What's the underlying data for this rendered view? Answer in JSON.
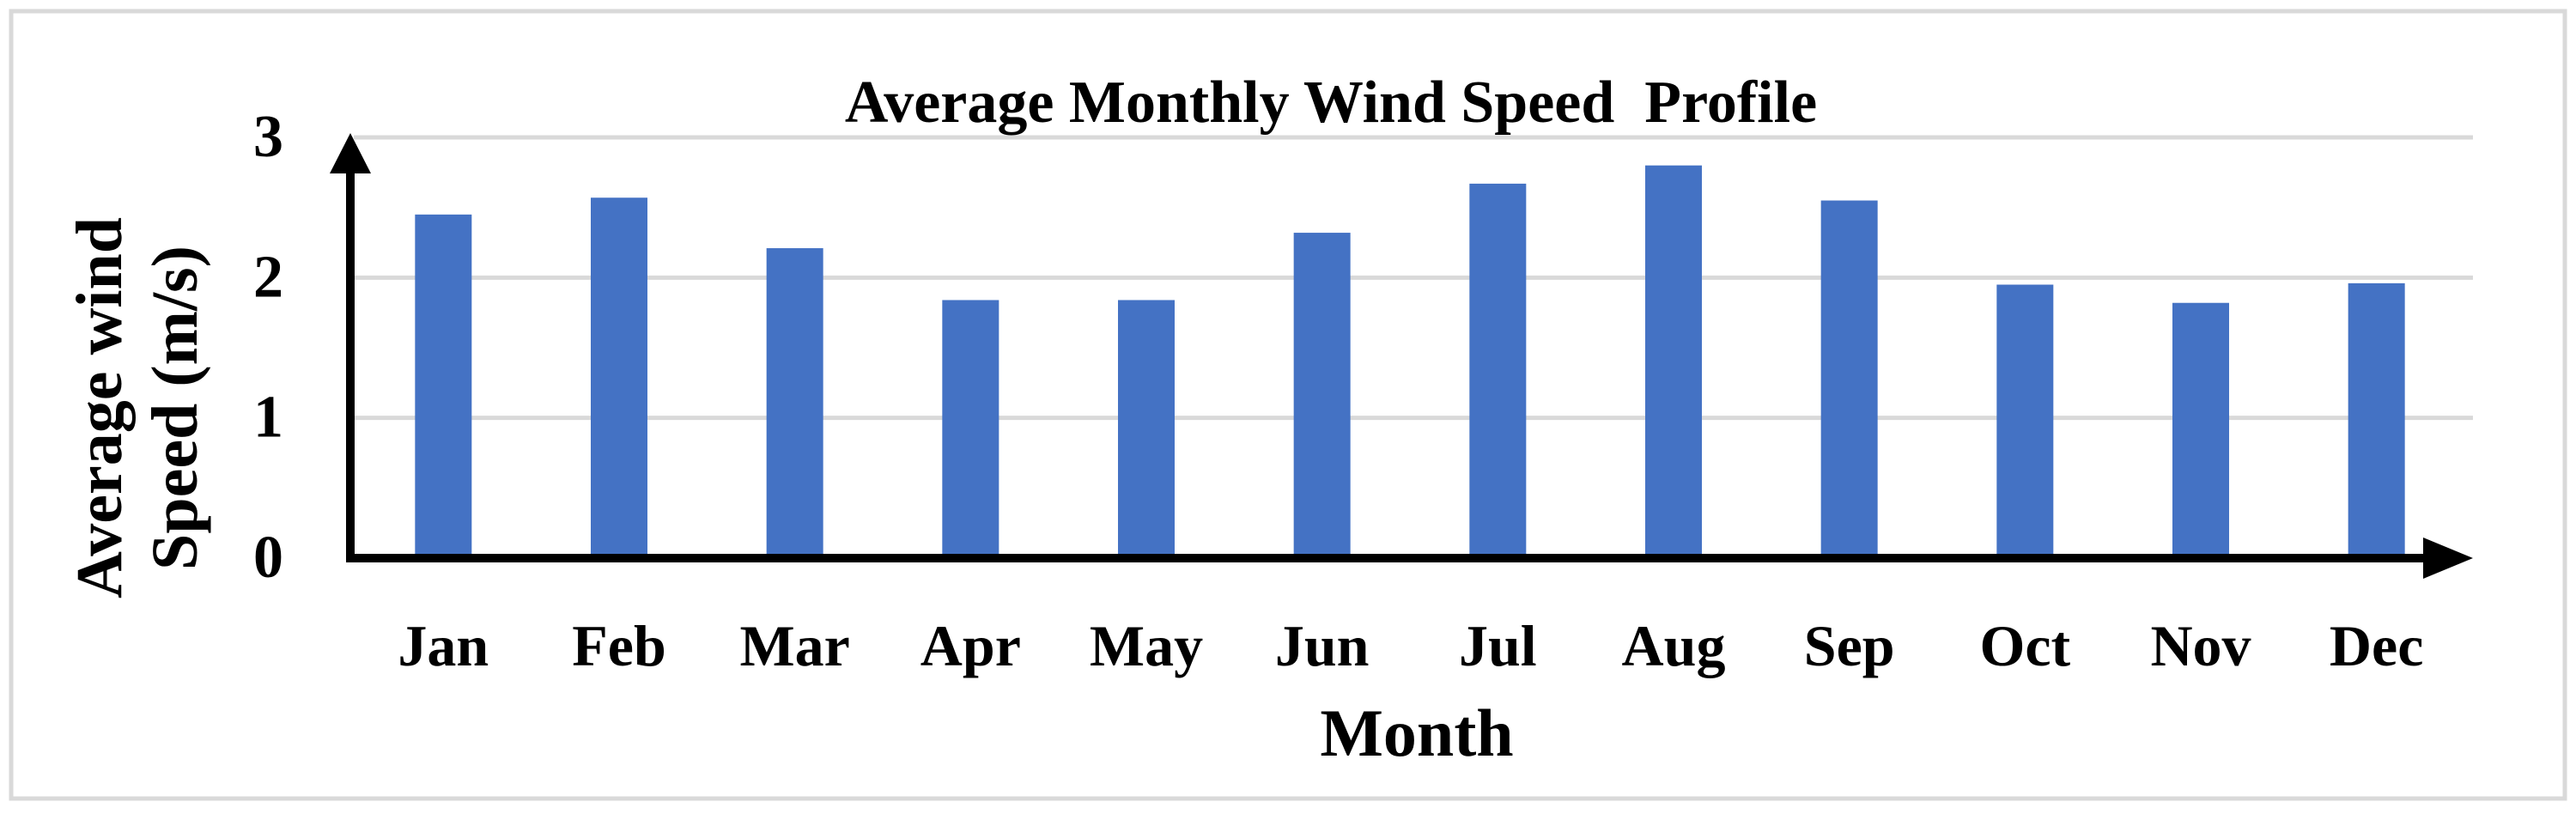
{
  "chart_data": {
    "type": "bar",
    "title": "Average Monthly Wind Speed  Profile",
    "xlabel": "Month",
    "ylabel_lines": [
      "Average wind",
      "Speed (m/s)"
    ],
    "categories": [
      "Jan",
      "Feb",
      "Mar",
      "Apr",
      "May",
      "Jun",
      "Jul",
      "Aug",
      "Sep",
      "Oct",
      "Nov",
      "Dec"
    ],
    "values": [
      2.45,
      2.57,
      2.21,
      1.84,
      1.84,
      2.32,
      2.67,
      2.8,
      2.55,
      1.95,
      1.82,
      1.96
    ],
    "yticks": [
      "0",
      "1",
      "2",
      "3"
    ],
    "ylim": [
      0,
      3
    ],
    "grid": true,
    "legend": "none",
    "bar_color": "#4472c4",
    "grid_color": "#d9d9d9",
    "frame_color": "#d9d9d9"
  }
}
